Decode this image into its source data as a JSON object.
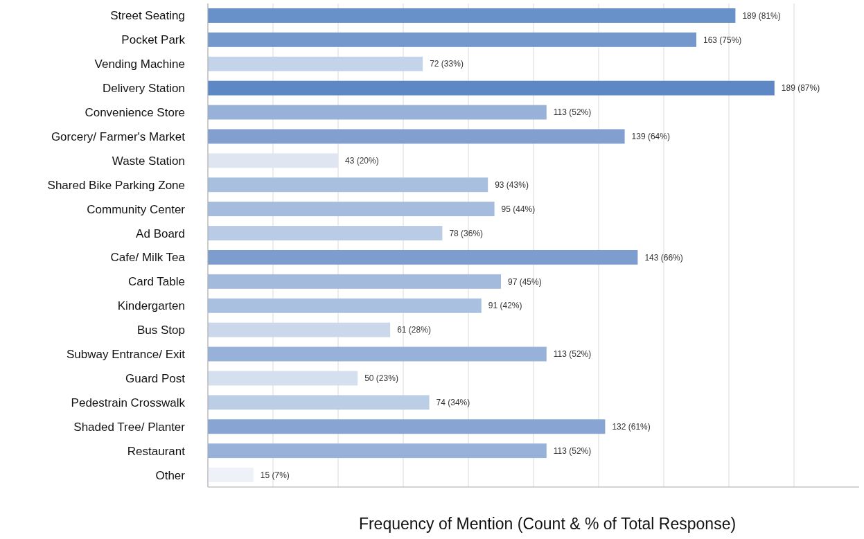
{
  "chart_data": {
    "type": "bar",
    "orientation": "horizontal",
    "xlabel": "Frequency of Mention (Count & % of Total Response)",
    "categories": [
      "Street Seating",
      "Pocket Park",
      "Vending Machine",
      "Delivery Station",
      "Convenience Store",
      "Gorcery/ Farmer's Market",
      "Waste Station",
      "Shared Bike Parking Zone",
      "Community Center",
      "Ad Board",
      "Cafe/ Milk Tea",
      "Card Table",
      "Kindergarten",
      "Bus Stop",
      "Subway Entrance/ Exit",
      "Guard Post",
      "Pedestrain Crosswalk",
      "Shaded Tree/ Planter",
      "Restaurant",
      "Other"
    ],
    "values": [
      81,
      75,
      33,
      87,
      52,
      64,
      20,
      43,
      44,
      36,
      66,
      45,
      42,
      28,
      52,
      23,
      34,
      61,
      52,
      7
    ],
    "value_labels": [
      "189 (81%)",
      "163 (75%)",
      "72 (33%)",
      "189 (87%)",
      "113 (52%)",
      "139 (64%)",
      "43 (20%)",
      "93 (43%)",
      "95 (44%)",
      "78 (36%)",
      "143 (66%)",
      "97 (45%)",
      "91 (42%)",
      "61 (28%)",
      "113 (52%)",
      "50 (23%)",
      "74 (34%)",
      "132 (61%)",
      "113 (52%)",
      "15 (7%)"
    ],
    "colors": [
      "#6890c9",
      "#7598cc",
      "#c3d3e9",
      "#5d87c5",
      "#98b1d8",
      "#839fd0",
      "#dfe6f2",
      "#a9bfe0",
      "#a6bcdf",
      "#b9cbe5",
      "#7e9dcf",
      "#a4badd",
      "#aac0e0",
      "#cbd8ec",
      "#98b1d8",
      "#d5e0ef",
      "#bccde6",
      "#88a4d2",
      "#98b1d8",
      "#eef2f8"
    ],
    "xlim": [
      0,
      100
    ],
    "xticks": [
      {
        "value": 0,
        "label": null
      },
      {
        "value": 10,
        "label": null
      },
      {
        "value": 20,
        "label": null
      },
      {
        "value": 30,
        "label": null
      },
      {
        "value": 40,
        "label": null
      },
      {
        "value": 50,
        "label": null
      },
      {
        "value": 60,
        "label": null
      },
      {
        "value": 70,
        "label": null
      },
      {
        "value": 80,
        "label": null
      },
      {
        "value": 90,
        "label": null
      }
    ],
    "grid": "x"
  }
}
